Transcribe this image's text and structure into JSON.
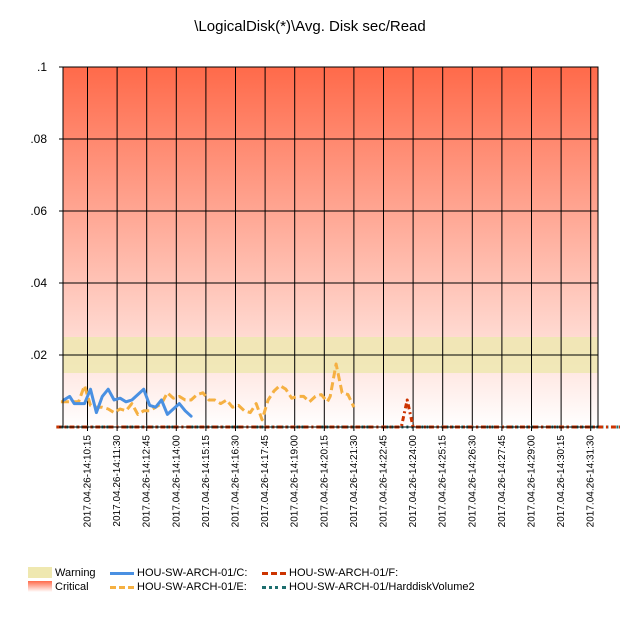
{
  "chart_data": {
    "type": "line",
    "title": "\\LogicalDisk(*)\\Avg. Disk sec/Read",
    "ylim": [
      0,
      0.1
    ],
    "ytick_values": [
      0,
      0.02,
      0.04,
      0.06,
      0.08,
      0.1
    ],
    "ytick_labels": [
      "",
      ".02",
      ".04",
      ".06",
      ".08",
      ".1"
    ],
    "grid": true,
    "thresholds": {
      "warning": {
        "from": 0.015,
        "to": 0.025,
        "color": "#efe8b0"
      },
      "critical": {
        "from": 0.025,
        "to": 0.1,
        "color_top": "#ff6a4a",
        "color_bottom": "#ffffff"
      }
    },
    "x_range": [
      0,
      18.6
    ],
    "x_ticks": [
      "2017.04.26-14:10:15",
      "2017.04.26-14:11:30",
      "2017.04.26-14:12:45",
      "2017.04.26-14:14:00",
      "2017.04.26-14:15:15",
      "2017.04.26-14:16:30",
      "2017.04.26-14:17:45",
      "2017.04.26-14:19:00",
      "2017.04.26-14:20:15",
      "2017.04.26-14:21:30",
      "2017.04.26-14:22:45",
      "2017.04.26-14:24:00",
      "2017.04.26-14:25:15",
      "2017.04.26-14:26:30",
      "2017.04.26-14:27:45",
      "2017.04.26-14:29:00",
      "2017.04.26-14:30:15",
      "2017.04.26-14:31:30"
    ],
    "series": [
      {
        "name": "HOU-SW-ARCH-01/C:",
        "color": "#4a90e2",
        "style": "solid",
        "x": [
          -0.8,
          -0.6,
          -0.45,
          -0.3,
          -0.1,
          0.1,
          0.3,
          0.5,
          0.7,
          0.9,
          1.1,
          1.3,
          1.5,
          1.7,
          1.9,
          2.1,
          2.3,
          2.5,
          2.7,
          2.9,
          3.1,
          3.3,
          3.5
        ],
        "y": [
          0.0075,
          0.0085,
          0.0065,
          0.0065,
          0.0065,
          0.0105,
          0.004,
          0.0085,
          0.0105,
          0.0075,
          0.008,
          0.007,
          0.0075,
          0.009,
          0.0105,
          0.006,
          0.0055,
          0.0075,
          0.0035,
          0.005,
          0.0065,
          0.0045,
          0.003
        ]
      },
      {
        "name": "HOU-SW-ARCH-01/E:",
        "color": "#f5b042",
        "style": "dashed",
        "x": [
          -0.9,
          -0.6,
          -0.3,
          -0.1,
          0.1,
          0.3,
          0.5,
          0.7,
          0.9,
          1.1,
          1.3,
          1.5,
          1.7,
          1.9,
          2.1,
          2.3,
          2.5,
          2.7,
          2.9,
          3.1,
          3.3,
          3.5,
          3.7,
          3.9,
          4.1,
          4.3,
          4.5,
          4.7,
          4.9,
          5.1,
          5.3,
          5.5,
          5.7,
          5.9,
          6.1,
          6.3,
          6.5,
          6.7,
          6.9,
          7.1,
          7.3,
          7.5,
          7.7,
          7.9,
          8.1,
          8.2,
          8.4,
          8.6,
          8.8,
          9.0
        ],
        "y": [
          0.007,
          0.007,
          0.007,
          0.0115,
          0.006,
          0.0055,
          0.0055,
          0.005,
          0.004,
          0.005,
          0.0045,
          0.0065,
          0.0035,
          0.0045,
          0.0045,
          0.0055,
          0.0065,
          0.0095,
          0.008,
          0.0085,
          0.0075,
          0.0075,
          0.009,
          0.0095,
          0.0075,
          0.0075,
          0.0065,
          0.0075,
          0.0055,
          0.006,
          0.0045,
          0.004,
          0.0065,
          0.002,
          0.0075,
          0.01,
          0.0115,
          0.0105,
          0.008,
          0.0085,
          0.0085,
          0.007,
          0.0085,
          0.009,
          0.007,
          0.0085,
          0.0175,
          0.0095,
          0.009,
          0.0055
        ]
      },
      {
        "name": "HOU-SW-ARCH-01/F:",
        "color": "#cc3300",
        "style": "dash-dot",
        "x": [
          -1.05,
          10.6,
          10.8,
          11.0,
          18.8
        ],
        "y": [
          0,
          0,
          0.0075,
          0,
          0
        ]
      },
      {
        "name": "HOU-SW-ARCH-01/HarddiskVolume2",
        "color": "#1d6e6e",
        "style": "dotted",
        "x": [
          -1.05,
          18.8
        ],
        "y": [
          0,
          0
        ]
      }
    ],
    "legend": {
      "position": "bottom",
      "thresholds": [
        "Warning",
        "Critical"
      ]
    }
  }
}
